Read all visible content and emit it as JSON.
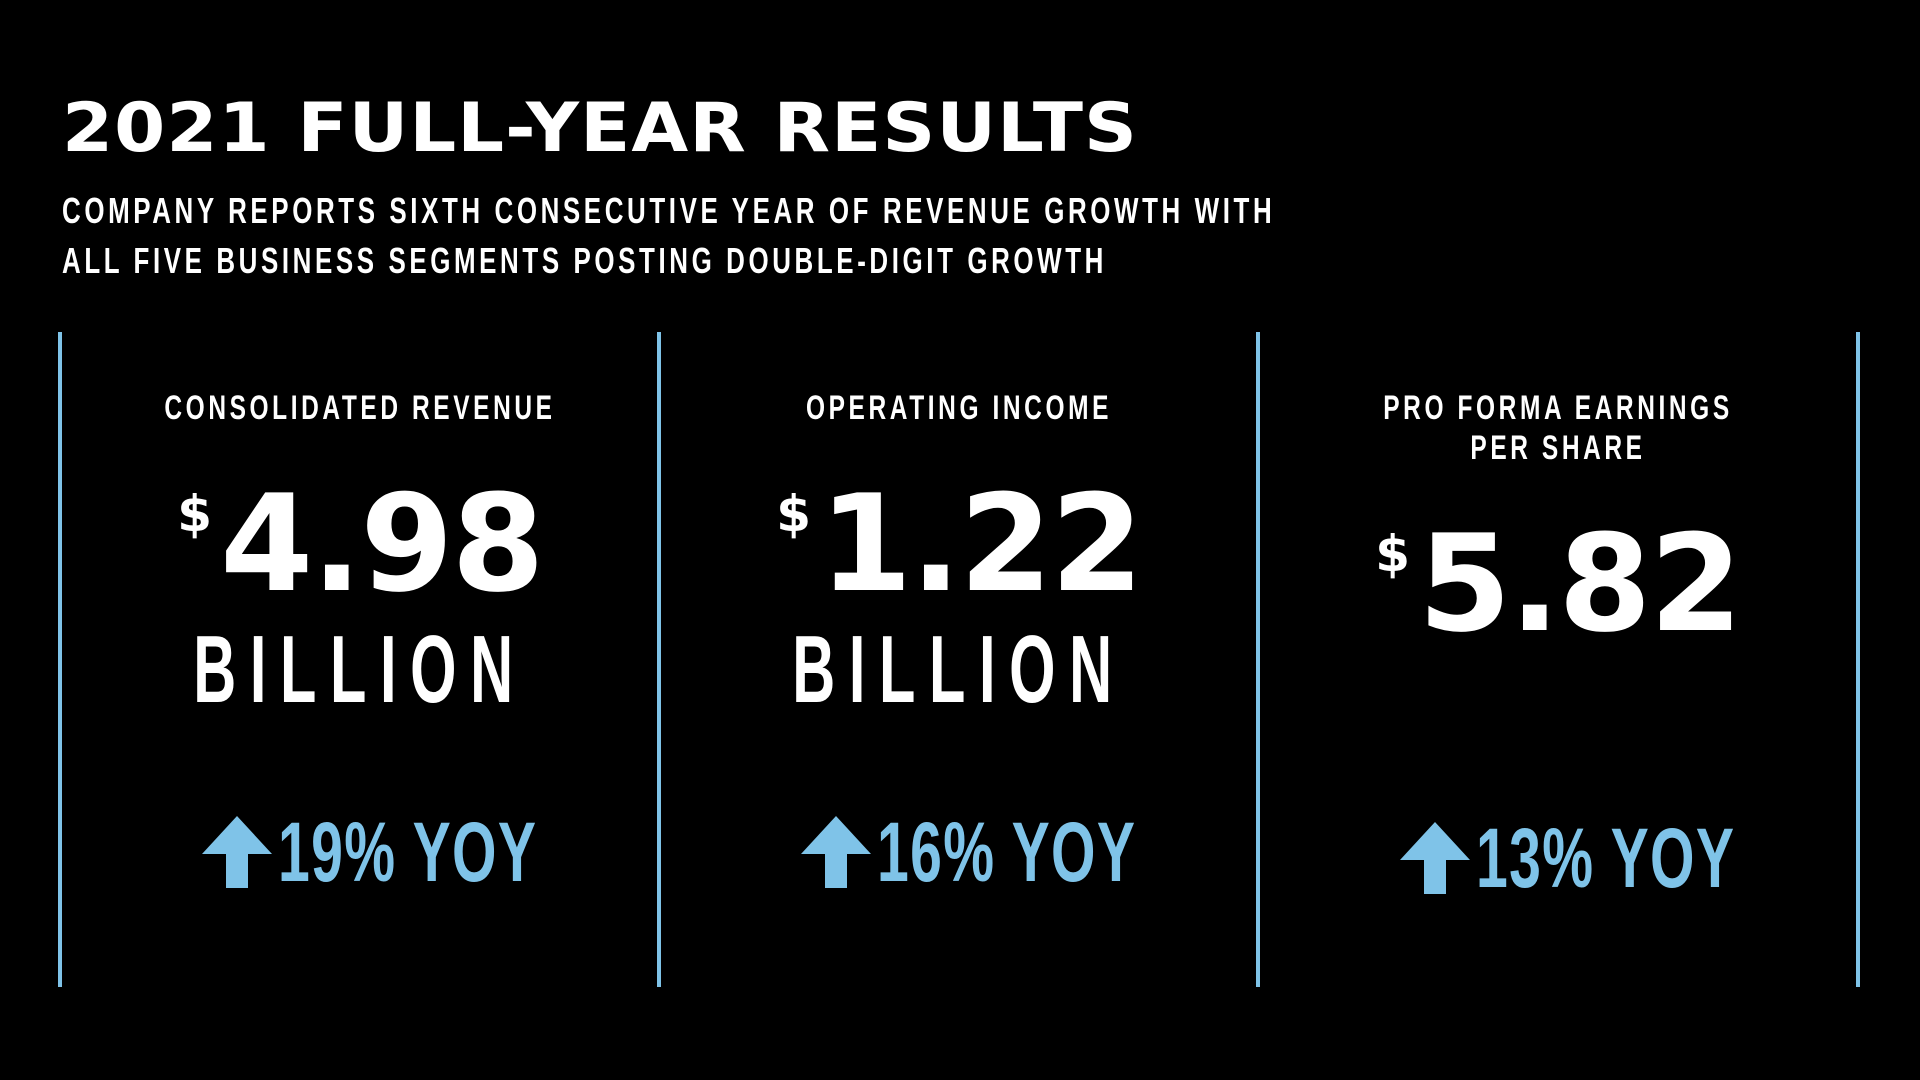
{
  "title": "2021 FULL-YEAR RESULTS",
  "subtitle": [
    "COMPANY REPORTS SIXTH CONSECUTIVE YEAR OF REVENUE GROWTH WITH",
    "ALL FIVE BUSINESS SEGMENTS POSTING DOUBLE-DIGIT GROWTH"
  ],
  "accent_color": "#7fc3e8",
  "metrics": [
    {
      "label": [
        "CONSOLIDATED REVENUE"
      ],
      "currency": "$",
      "value": "4.98",
      "unit": "BILLION",
      "growth": "19% YOY",
      "growth_icon": "arrow-up-icon"
    },
    {
      "label": [
        "OPERATING INCOME"
      ],
      "currency": "$",
      "value": "1.22",
      "unit": "BILLION",
      "growth": "16% YOY",
      "growth_icon": "arrow-up-icon"
    },
    {
      "label": [
        "PRO FORMA EARNINGS",
        "PER SHARE"
      ],
      "currency": "$",
      "value": "5.82",
      "unit": "",
      "growth": "13% YOY",
      "growth_icon": "arrow-up-icon"
    }
  ]
}
